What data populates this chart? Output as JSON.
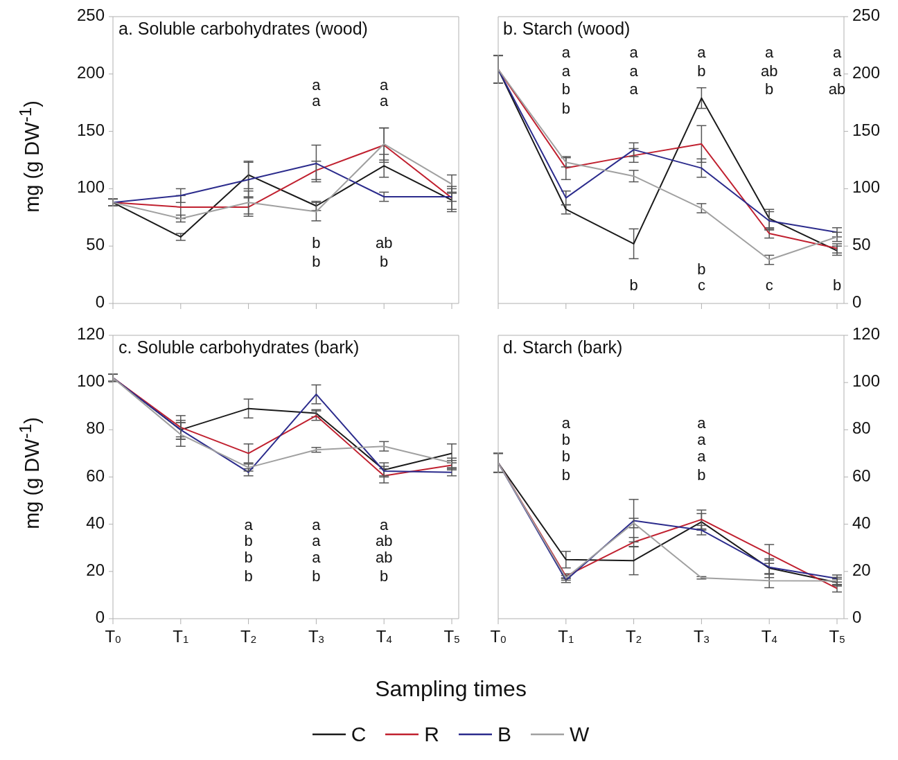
{
  "chart_data": [
    {
      "type": "line",
      "title": "a. Soluble carbohydrates (wood)",
      "ylabel": "mg (g DW$^{-1}$)",
      "categories": [
        null,
        null,
        null,
        null,
        null,
        null
      ],
      "ylim": [
        0,
        250
      ],
      "yticks": [
        0,
        50,
        100,
        150,
        200,
        250
      ],
      "series": [
        {
          "color": "#1a1a1a",
          "values": [
            88,
            58,
            112,
            85,
            120,
            90
          ],
          "errors": [
            3,
            3,
            12,
            4,
            10,
            10
          ]
        },
        {
          "color": "#c0202f",
          "values": [
            88,
            84,
            84,
            116,
            138,
            92
          ],
          "errors": [
            3,
            10,
            8,
            8,
            15,
            10
          ]
        },
        {
          "color": "#2b2b8c",
          "values": [
            88,
            94,
            108,
            122,
            93,
            93
          ],
          "errors": [
            3,
            6,
            15,
            16,
            4,
            4
          ]
        },
        {
          "color": "#a0a0a0",
          "values": [
            88,
            74,
            88,
            80,
            139,
            104
          ],
          "errors": [
            3,
            3,
            10,
            8,
            14,
            8
          ]
        }
      ],
      "annotations": [
        "a",
        "a",
        "b",
        "b",
        "a",
        "a",
        "ab",
        "b"
      ]
    },
    {
      "type": "line",
      "title": "b. Starch (wood)",
      "categories": [
        null,
        null,
        null,
        null,
        null,
        null
      ],
      "ylim": [
        0,
        250
      ],
      "yticks": [
        0,
        50,
        100,
        150,
        200,
        250
      ],
      "series": [
        {
          "color": "#1a1a1a",
          "values": [
            204,
            82,
            52,
            179,
            74,
            46
          ],
          "errors": [
            12,
            4,
            13,
            9,
            8,
            4
          ]
        },
        {
          "color": "#c0202f",
          "values": [
            204,
            118,
            129,
            139,
            61,
            48
          ],
          "errors": [
            12,
            10,
            6,
            16,
            4,
            4
          ]
        },
        {
          "color": "#2b2b8c",
          "values": [
            204,
            92,
            134,
            118,
            72,
            62
          ],
          "errors": [
            12,
            6,
            6,
            8,
            8,
            4
          ]
        },
        {
          "color": "#a0a0a0",
          "values": [
            204,
            123,
            111,
            83,
            38,
            58
          ],
          "errors": [
            12,
            4,
            5,
            4,
            4,
            4
          ]
        }
      ],
      "annotations": [
        "a",
        "a",
        "b",
        "b",
        "a",
        "a",
        "a",
        "b",
        "a",
        "b",
        "b",
        "c",
        "a",
        "ab",
        "b",
        "c",
        "a",
        "a",
        "ab",
        "b"
      ]
    },
    {
      "type": "line",
      "title": "c. Soluble carbohydrates (bark)",
      "xlabel": "Sampling times",
      "ylabel": "mg (g DW$^{-1}$)",
      "categories": [
        "T$_{0}$",
        "T$_{1}$",
        "T$_{2}$",
        "T$_{3}$",
        "T$_{4}$",
        "T$_{5}$"
      ],
      "ylim": [
        0,
        120
      ],
      "yticks": [
        0,
        20,
        40,
        60,
        80,
        100,
        120
      ],
      "series": [
        {
          "color": "#1a1a1a",
          "values": [
            102,
            80,
            89,
            87,
            63,
            70
          ],
          "errors": [
            1.5,
            3,
            4,
            1.5,
            3,
            4
          ]
        },
        {
          "color": "#c0202f",
          "values": [
            102,
            81,
            70,
            86,
            60.5,
            65
          ],
          "errors": [
            1.5,
            5,
            4,
            2,
            3,
            2
          ]
        },
        {
          "color": "#2b2b8c",
          "values": [
            102,
            80,
            62,
            95,
            62.5,
            62
          ],
          "errors": [
            1.5,
            4,
            1.5,
            4,
            2,
            1.5
          ]
        },
        {
          "color": "#a0a0a0",
          "values": [
            102,
            78,
            64,
            71.5,
            73,
            66
          ],
          "errors": [
            1.5,
            5,
            1.5,
            1,
            2,
            2
          ]
        }
      ],
      "annotations": [
        "a",
        "b",
        "b",
        "b",
        "a",
        "a",
        "a",
        "b",
        "a",
        "ab",
        "ab",
        "b"
      ]
    },
    {
      "type": "line",
      "title": "d. Starch (bark)",
      "categories": [
        "T$_{0}$",
        "T$_{1}$",
        "T$_{2}$",
        "T$_{3}$",
        "T$_{4}$",
        "T$_{5}$"
      ],
      "ylim": [
        0,
        120
      ],
      "yticks": [
        0,
        20,
        40,
        60,
        80,
        100,
        120
      ],
      "legend": "bottom",
      "series": [
        {
          "name": "C",
          "color": "#1a1a1a",
          "values": [
            66,
            25,
            24.6,
            41,
            21.4,
            15.3
          ],
          "errors": [
            4,
            3.5,
            6,
            3.5,
            4,
            1.5
          ]
        },
        {
          "name": "R",
          "color": "#c0202f",
          "values": [
            66,
            18,
            32.4,
            42,
            27.4,
            12.8
          ],
          "errors": [
            4,
            1,
            2,
            4,
            4,
            1.5
          ]
        },
        {
          "name": "B",
          "color": "#2b2b8c",
          "values": [
            66,
            16.3,
            41.5,
            37.5,
            21.8,
            17
          ],
          "errors": [
            4,
            1,
            9,
            2,
            3,
            1.5
          ]
        },
        {
          "name": "W",
          "color": "#a0a0a0",
          "values": [
            66,
            17.3,
            40.5,
            17.3,
            16.1,
            16
          ],
          "errors": [
            4,
            1,
            2,
            0.5,
            3,
            1.5
          ]
        }
      ],
      "annotations": [
        "a",
        "b",
        "b",
        "b",
        "a",
        "a",
        "a",
        "b"
      ]
    }
  ]
}
